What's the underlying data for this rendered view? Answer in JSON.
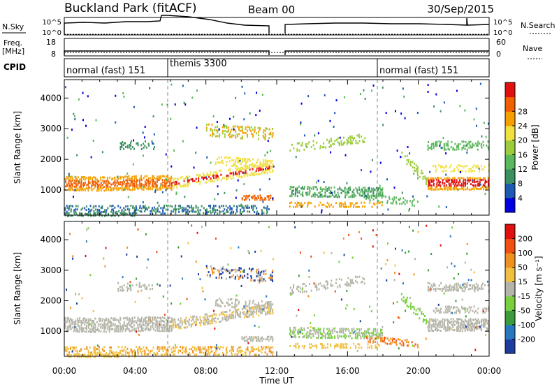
{
  "header": {
    "title": "Buckland Park (fitACF)",
    "beam": "Beam 00",
    "date": "30/Sep/2015"
  },
  "strips": {
    "nsky_label": "N.Sky",
    "nsearch_label": "N.Search",
    "freq_label": "Freq.",
    "freq_unit": "[MHz]",
    "nave_label": "Nave",
    "cpid_label": "CPID",
    "log_top": "10^5",
    "log_bottom": "10^0",
    "freq_ticks": [
      "18",
      "8"
    ],
    "nave_ticks": [
      "60",
      "0"
    ]
  },
  "cpid_segments": [
    {
      "label": "normal (fast) 151",
      "start_hour": 0,
      "end_hour": 6
    },
    {
      "label": "themis 3300",
      "start_hour": 6,
      "end_hour": 18
    },
    {
      "label": "normal (fast) 151",
      "start_hour": 18,
      "end_hour": 24
    }
  ],
  "chart_data": [
    {
      "type": "heatmap",
      "name": "power",
      "xlabel": "",
      "ylabel": "Slant Range [km]",
      "xlim": [
        0,
        24
      ],
      "ylim": [
        180,
        4600
      ],
      "xticks": [
        "00:00",
        "04:00",
        "08:00",
        "12:00",
        "16:00",
        "20:00",
        "00:00"
      ],
      "yticks": [
        1000,
        2000,
        3000,
        4000
      ],
      "colorbar": {
        "label": "Power [dB]",
        "ticks": [
          "4",
          "8",
          "12",
          "16",
          "20",
          "24",
          "28"
        ],
        "colors": [
          "#0000e0",
          "#1e5ab4",
          "#3c9060",
          "#5cb85c",
          "#9ccc3c",
          "#f0e040",
          "#f5a000",
          "#f06000",
          "#e01010"
        ]
      },
      "data_gap_hours": [
        11.8,
        12.7
      ]
    },
    {
      "type": "heatmap",
      "name": "velocity",
      "xlabel": "Time UT",
      "ylabel": "Slant Range [km]",
      "xlim": [
        0,
        24
      ],
      "ylim": [
        180,
        4600
      ],
      "xticks": [
        "00:00",
        "04:00",
        "08:00",
        "12:00",
        "16:00",
        "20:00",
        "00:00"
      ],
      "yticks": [
        1000,
        2000,
        3000,
        4000
      ],
      "colorbar": {
        "label": "Velocity [m s⁻¹]",
        "ticks": [
          "200",
          "100",
          "50",
          "15",
          "-15",
          "-50",
          "-100",
          "-200"
        ],
        "colors": [
          "#1e3ca0",
          "#2878c0",
          "#3c9c3c",
          "#78d03c",
          "#b4b4a8",
          "#f0c040",
          "#f09020",
          "#f05010",
          "#e01010"
        ]
      },
      "data_gap_hours": [
        11.8,
        12.7
      ]
    }
  ],
  "colors": {
    "axis": "#000000",
    "dashed_marker": "#888888"
  }
}
